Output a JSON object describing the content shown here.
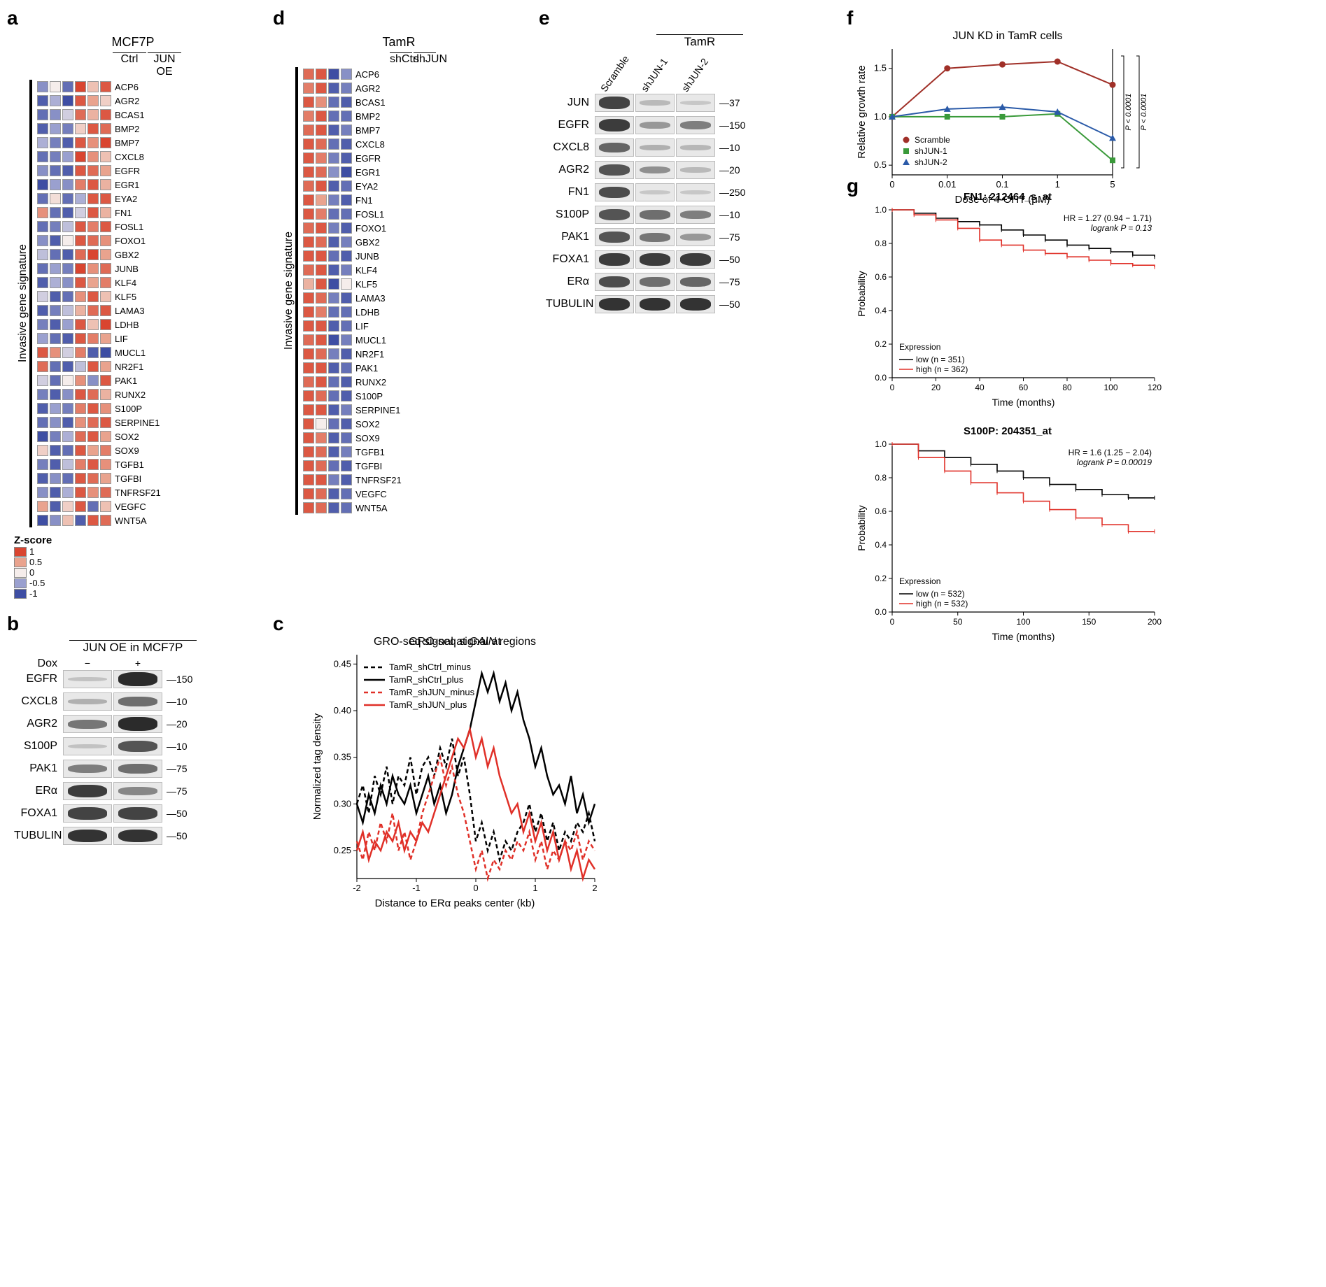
{
  "zscale": {
    "title": "Z-score",
    "stops": [
      {
        "v": "1",
        "c": "#d94530"
      },
      {
        "v": "0.5",
        "c": "#e9a38e"
      },
      {
        "v": "0",
        "c": "#f5edeb"
      },
      {
        "v": "-0.5",
        "c": "#9aa0cf"
      },
      {
        "v": "-1",
        "c": "#3e4ea3"
      }
    ]
  },
  "panel_a": {
    "title": "MCF7P",
    "header": [
      "Ctrl",
      "JUN OE"
    ],
    "sidelabel": "Invasive gene signature",
    "genes": [
      "ACP6",
      "AGR2",
      "BCAS1",
      "BMP2",
      "BMP7",
      "CXCL8",
      "EGFR",
      "EGR1",
      "EYA2",
      "FN1",
      "FOSL1",
      "FOXO1",
      "GBX2",
      "JUNB",
      "KLF4",
      "KLF5",
      "LAMA3",
      "LDHB",
      "LIF",
      "MUCL1",
      "NR2F1",
      "PAK1",
      "RUNX2",
      "S100P",
      "SERPINE1",
      "SOX2",
      "SOX9",
      "TGFB1",
      "TGFBI",
      "TNFRSF21",
      "VEGFC",
      "WNT5A"
    ],
    "matrix": [
      [
        -0.6,
        0.0,
        -0.8,
        1.0,
        0.3,
        0.9
      ],
      [
        -0.9,
        -0.4,
        -1.0,
        0.9,
        0.5,
        0.2
      ],
      [
        -0.8,
        -0.6,
        -0.2,
        0.8,
        0.4,
        0.9
      ],
      [
        -0.9,
        -0.5,
        -0.7,
        0.2,
        0.9,
        0.8
      ],
      [
        -0.4,
        -0.7,
        -0.9,
        0.9,
        0.6,
        1.0
      ],
      [
        -0.8,
        -0.7,
        -0.5,
        1.0,
        0.6,
        0.3
      ],
      [
        -0.6,
        -0.8,
        -0.9,
        0.9,
        0.8,
        0.5
      ],
      [
        -1.0,
        -0.5,
        -0.6,
        0.7,
        0.9,
        0.4
      ],
      [
        -0.8,
        0.1,
        -0.8,
        -0.4,
        0.9,
        0.9
      ],
      [
        0.6,
        -0.8,
        -0.9,
        -0.2,
        0.9,
        0.4
      ],
      [
        -0.8,
        -0.7,
        -0.3,
        0.9,
        0.7,
        0.9
      ],
      [
        -0.6,
        -0.9,
        0.0,
        0.9,
        0.8,
        0.6
      ],
      [
        -0.3,
        -0.8,
        -0.9,
        0.8,
        1.0,
        0.5
      ],
      [
        -0.8,
        -0.5,
        -0.7,
        1.0,
        0.6,
        0.8
      ],
      [
        -0.9,
        -0.4,
        -0.6,
        0.9,
        0.5,
        0.7
      ],
      [
        -0.2,
        -0.9,
        -0.8,
        0.6,
        0.9,
        0.3
      ],
      [
        -0.9,
        -0.7,
        -0.3,
        0.4,
        0.8,
        0.9
      ],
      [
        -0.7,
        -0.9,
        -0.5,
        0.9,
        0.3,
        1.0
      ],
      [
        -0.5,
        -0.8,
        -0.9,
        0.9,
        0.7,
        0.5
      ],
      [
        0.9,
        0.6,
        -0.2,
        0.7,
        -0.9,
        -1.0
      ],
      [
        0.8,
        -0.8,
        -0.9,
        -0.3,
        0.9,
        0.5
      ],
      [
        -0.2,
        -0.8,
        0.0,
        0.6,
        -0.6,
        0.9
      ],
      [
        -0.7,
        -0.9,
        -0.6,
        0.9,
        0.8,
        0.4
      ],
      [
        -0.9,
        -0.5,
        -0.7,
        0.7,
        0.9,
        0.6
      ],
      [
        -0.8,
        -0.6,
        -0.9,
        0.6,
        0.8,
        0.9
      ],
      [
        -1.0,
        -0.7,
        -0.4,
        0.8,
        0.9,
        0.5
      ],
      [
        0.2,
        -0.9,
        -0.8,
        0.9,
        0.5,
        0.7
      ],
      [
        -0.7,
        -0.9,
        -0.3,
        0.7,
        0.9,
        0.6
      ],
      [
        -0.9,
        -0.6,
        -0.8,
        0.9,
        0.8,
        0.5
      ],
      [
        -0.6,
        -0.9,
        -0.4,
        0.9,
        0.6,
        0.8
      ],
      [
        0.5,
        -0.9,
        0.2,
        0.9,
        -0.8,
        0.3
      ],
      [
        -1.0,
        -0.6,
        0.3,
        -0.9,
        0.9,
        0.8
      ]
    ]
  },
  "panel_d": {
    "title": "TamR",
    "header": [
      "shCtrl",
      "shJUN"
    ],
    "sidelabel": "Invasive gene signature",
    "genes": [
      "ACP6",
      "AGR2",
      "BCAS1",
      "BMP2",
      "BMP7",
      "CXCL8",
      "EGFR",
      "EGR1",
      "EYA2",
      "FN1",
      "FOSL1",
      "FOXO1",
      "GBX2",
      "JUNB",
      "KLF4",
      "KLF5",
      "LAMA3",
      "LDHB",
      "LIF",
      "MUCL1",
      "NR2F1",
      "PAK1",
      "RUNX2",
      "S100P",
      "SERPINE1",
      "SOX2",
      "SOX9",
      "TGFB1",
      "TGFBI",
      "TNFRSF21",
      "VEGFC",
      "WNT5A"
    ],
    "matrix": [
      [
        0.8,
        0.9,
        -1.0,
        -0.6
      ],
      [
        0.7,
        0.9,
        -0.9,
        -0.7
      ],
      [
        0.9,
        0.6,
        -0.8,
        -0.9
      ],
      [
        0.7,
        0.9,
        -0.8,
        -0.8
      ],
      [
        0.8,
        0.9,
        -0.9,
        -0.7
      ],
      [
        0.9,
        0.8,
        -0.8,
        -0.9
      ],
      [
        0.9,
        0.7,
        -0.7,
        -0.9
      ],
      [
        0.9,
        0.8,
        -0.6,
        -1.0
      ],
      [
        0.8,
        0.9,
        -0.9,
        -0.8
      ],
      [
        0.9,
        0.5,
        -0.7,
        -0.9
      ],
      [
        0.9,
        0.7,
        -0.8,
        -0.8
      ],
      [
        0.8,
        0.9,
        -0.7,
        -0.9
      ],
      [
        0.9,
        0.8,
        -0.9,
        -0.7
      ],
      [
        0.9,
        0.9,
        -0.8,
        -0.9
      ],
      [
        0.8,
        0.9,
        -0.9,
        -0.7
      ],
      [
        0.4,
        0.9,
        -1.0,
        0.0
      ],
      [
        0.9,
        0.8,
        -0.7,
        -0.9
      ],
      [
        0.9,
        0.7,
        -0.8,
        -0.8
      ],
      [
        0.9,
        0.9,
        -0.9,
        -0.8
      ],
      [
        0.8,
        0.9,
        -1.0,
        -0.7
      ],
      [
        0.9,
        0.8,
        -0.7,
        -0.9
      ],
      [
        0.9,
        0.9,
        -0.9,
        -0.8
      ],
      [
        0.8,
        0.9,
        -0.8,
        -0.9
      ],
      [
        0.9,
        0.8,
        -0.8,
        -0.9
      ],
      [
        0.9,
        0.9,
        -0.9,
        -0.7
      ],
      [
        0.9,
        0.0,
        -0.8,
        -0.9
      ],
      [
        0.9,
        0.7,
        -0.9,
        -0.8
      ],
      [
        0.9,
        0.8,
        -0.9,
        -0.7
      ],
      [
        0.9,
        0.8,
        -0.8,
        -0.9
      ],
      [
        0.9,
        0.9,
        -0.7,
        -0.9
      ],
      [
        0.9,
        0.8,
        -0.9,
        -0.8
      ],
      [
        0.9,
        0.8,
        -0.9,
        -0.8
      ]
    ]
  },
  "panel_b": {
    "title": "JUN OE in MCF7P",
    "colheaders": [
      "−",
      "+"
    ],
    "rowheader": "Dox",
    "lane_w": 70,
    "rows": [
      {
        "label": "EGFR",
        "mw": "150",
        "bands": [
          0.05,
          0.95
        ]
      },
      {
        "label": "CXCL8",
        "mw": "10",
        "bands": [
          0.15,
          0.55
        ]
      },
      {
        "label": "AGR2",
        "mw": "20",
        "bands": [
          0.5,
          0.95
        ]
      },
      {
        "label": "S100P",
        "mw": "10",
        "bands": [
          0.05,
          0.7
        ]
      },
      {
        "label": "PAK1",
        "mw": "75",
        "bands": [
          0.45,
          0.55
        ]
      },
      {
        "label": "ERα",
        "mw": "75",
        "bands": [
          0.85,
          0.4
        ]
      },
      {
        "label": "FOXA1",
        "mw": "50",
        "bands": [
          0.8,
          0.8
        ]
      },
      {
        "label": "TUBULIN",
        "mw": "50",
        "bands": [
          0.9,
          0.9
        ]
      }
    ]
  },
  "panel_e": {
    "title": "TamR",
    "colheaders": [
      "Scramble",
      "shJUN-1",
      "shJUN-2"
    ],
    "lane_w": 56,
    "rows": [
      {
        "label": "JUN",
        "mw": "37",
        "bands": [
          0.8,
          0.1,
          0.02
        ]
      },
      {
        "label": "EGFR",
        "mw": "150",
        "bands": [
          0.85,
          0.3,
          0.45
        ]
      },
      {
        "label": "CXCL8",
        "mw": "10",
        "bands": [
          0.6,
          0.15,
          0.12
        ]
      },
      {
        "label": "AGR2",
        "mw": "20",
        "bands": [
          0.7,
          0.35,
          0.1
        ]
      },
      {
        "label": "FN1",
        "mw": "250",
        "bands": [
          0.75,
          0.02,
          0.02
        ]
      },
      {
        "label": "S100P",
        "mw": "10",
        "bands": [
          0.7,
          0.55,
          0.45
        ]
      },
      {
        "label": "PAK1",
        "mw": "75",
        "bands": [
          0.7,
          0.5,
          0.3
        ]
      },
      {
        "label": "FOXA1",
        "mw": "50",
        "bands": [
          0.85,
          0.85,
          0.85
        ]
      },
      {
        "label": "ERα",
        "mw": "75",
        "bands": [
          0.75,
          0.55,
          0.6
        ]
      },
      {
        "label": "TUBULIN",
        "mw": "50",
        "bands": [
          0.9,
          0.9,
          0.9
        ]
      }
    ]
  },
  "panel_c": {
    "title": "GRO-seq signal at GAIN regions",
    "title_italic_word": "GAIN",
    "xlabel": "Distance to ERα peaks center (kb)",
    "ylabel": "Normalized tag density",
    "xlim": [
      -2,
      2
    ],
    "ylim": [
      0.22,
      0.46
    ],
    "xticks": [
      -2,
      -1,
      0,
      1,
      2
    ],
    "yticks": [
      0.25,
      0.3,
      0.35,
      0.4,
      0.45
    ],
    "ytick_labels": [
      "0.25",
      "0.30",
      "0.35",
      "0.40",
      "0.45"
    ],
    "series": [
      {
        "name": "TamR_shCtrl_minus",
        "color": "#000000",
        "dash": true,
        "y": [
          0.3,
          0.32,
          0.29,
          0.33,
          0.31,
          0.34,
          0.3,
          0.33,
          0.32,
          0.35,
          0.31,
          0.34,
          0.35,
          0.33,
          0.36,
          0.34,
          0.37,
          0.33,
          0.35,
          0.31,
          0.26,
          0.28,
          0.25,
          0.27,
          0.24,
          0.26,
          0.25,
          0.27,
          0.28,
          0.3,
          0.27,
          0.29,
          0.26,
          0.28,
          0.25,
          0.27,
          0.26,
          0.28,
          0.27,
          0.29,
          0.26
        ]
      },
      {
        "name": "TamR_shCtrl_plus",
        "color": "#000000",
        "dash": false,
        "y": [
          0.3,
          0.28,
          0.31,
          0.29,
          0.32,
          0.3,
          0.33,
          0.31,
          0.3,
          0.32,
          0.29,
          0.31,
          0.33,
          0.3,
          0.32,
          0.29,
          0.31,
          0.34,
          0.36,
          0.38,
          0.41,
          0.44,
          0.42,
          0.44,
          0.41,
          0.43,
          0.4,
          0.42,
          0.39,
          0.37,
          0.34,
          0.36,
          0.33,
          0.31,
          0.32,
          0.3,
          0.33,
          0.29,
          0.31,
          0.28,
          0.3
        ]
      },
      {
        "name": "TamR_shJUN_minus",
        "color": "#e03028",
        "dash": true,
        "y": [
          0.26,
          0.24,
          0.27,
          0.25,
          0.28,
          0.26,
          0.29,
          0.25,
          0.27,
          0.24,
          0.26,
          0.29,
          0.31,
          0.33,
          0.35,
          0.32,
          0.34,
          0.31,
          0.29,
          0.26,
          0.23,
          0.25,
          0.22,
          0.24,
          0.23,
          0.25,
          0.24,
          0.26,
          0.25,
          0.27,
          0.24,
          0.26,
          0.23,
          0.25,
          0.24,
          0.26,
          0.25,
          0.27,
          0.24,
          0.26,
          0.25
        ]
      },
      {
        "name": "TamR_shJUN_plus",
        "color": "#e03028",
        "dash": false,
        "y": [
          0.25,
          0.27,
          0.24,
          0.26,
          0.25,
          0.27,
          0.26,
          0.28,
          0.25,
          0.27,
          0.26,
          0.28,
          0.27,
          0.29,
          0.31,
          0.33,
          0.35,
          0.37,
          0.36,
          0.38,
          0.35,
          0.37,
          0.34,
          0.36,
          0.33,
          0.31,
          0.29,
          0.3,
          0.27,
          0.29,
          0.26,
          0.28,
          0.25,
          0.27,
          0.24,
          0.26,
          0.23,
          0.25,
          0.22,
          0.24,
          0.23
        ]
      }
    ]
  },
  "panel_f": {
    "title": "JUN KD in TamR cells",
    "xlabel": "Dose of 4-OHT (μM)",
    "ylabel": "Relative growth rate",
    "xcats": [
      "0",
      "0.01",
      "0.1",
      "1",
      "5"
    ],
    "ylim": [
      0.4,
      1.7
    ],
    "yticks": [
      0.5,
      1.0,
      1.5
    ],
    "series": [
      {
        "name": "Scramble",
        "color": "#a03028",
        "marker": "circle",
        "y": [
          1.0,
          1.5,
          1.54,
          1.57,
          1.33
        ]
      },
      {
        "name": "shJUN-1",
        "color": "#3a9a3a",
        "marker": "square",
        "y": [
          1.0,
          1.0,
          1.0,
          1.03,
          0.55
        ]
      },
      {
        "name": "shJUN-2",
        "color": "#2a5aa8",
        "marker": "triangle",
        "y": [
          1.0,
          1.08,
          1.1,
          1.05,
          0.78
        ]
      }
    ],
    "pvals": [
      "P < 0.0001",
      "P < 0.0001"
    ]
  },
  "panel_g": [
    {
      "title": "FN1: 212464_s_at",
      "hr": "HR = 1.27 (0.94 − 1.71)",
      "logrank": "logrank P = 0.13",
      "xlabel": "Time (months)",
      "ylabel": "Probability",
      "xlim": [
        0,
        120
      ],
      "xticks": [
        0,
        20,
        40,
        60,
        80,
        100,
        120
      ],
      "ylim": [
        0,
        1
      ],
      "yticks": [
        0.0,
        0.2,
        0.4,
        0.6,
        0.8,
        1.0
      ],
      "legend": {
        "low": "low (n = 351)",
        "high": "high (n = 362)"
      },
      "low": {
        "color": "#000000",
        "pts": [
          [
            0,
            1.0
          ],
          [
            10,
            0.98
          ],
          [
            20,
            0.95
          ],
          [
            30,
            0.93
          ],
          [
            40,
            0.91
          ],
          [
            50,
            0.88
          ],
          [
            60,
            0.85
          ],
          [
            70,
            0.82
          ],
          [
            80,
            0.79
          ],
          [
            90,
            0.77
          ],
          [
            100,
            0.75
          ],
          [
            110,
            0.73
          ],
          [
            120,
            0.72
          ]
        ]
      },
      "high": {
        "color": "#e03028",
        "pts": [
          [
            0,
            1.0
          ],
          [
            10,
            0.97
          ],
          [
            20,
            0.94
          ],
          [
            30,
            0.89
          ],
          [
            40,
            0.82
          ],
          [
            50,
            0.79
          ],
          [
            60,
            0.76
          ],
          [
            70,
            0.74
          ],
          [
            80,
            0.72
          ],
          [
            90,
            0.7
          ],
          [
            100,
            0.68
          ],
          [
            110,
            0.67
          ],
          [
            120,
            0.66
          ]
        ]
      }
    },
    {
      "title": "S100P: 204351_at",
      "hr": "HR = 1.6 (1.25 − 2.04)",
      "logrank": "logrank P = 0.00019",
      "xlabel": "Time (months)",
      "ylabel": "Probability",
      "xlim": [
        0,
        200
      ],
      "xticks": [
        0,
        50,
        100,
        150,
        200
      ],
      "ylim": [
        0,
        1
      ],
      "yticks": [
        0.0,
        0.2,
        0.4,
        0.6,
        0.8,
        1.0
      ],
      "legend": {
        "low": "low (n = 532)",
        "high": "high (n = 532)"
      },
      "low": {
        "color": "#000000",
        "pts": [
          [
            0,
            1.0
          ],
          [
            20,
            0.96
          ],
          [
            40,
            0.92
          ],
          [
            60,
            0.88
          ],
          [
            80,
            0.84
          ],
          [
            100,
            0.8
          ],
          [
            120,
            0.76
          ],
          [
            140,
            0.73
          ],
          [
            160,
            0.7
          ],
          [
            180,
            0.68
          ],
          [
            200,
            0.68
          ]
        ]
      },
      "high": {
        "color": "#e03028",
        "pts": [
          [
            0,
            1.0
          ],
          [
            20,
            0.92
          ],
          [
            40,
            0.84
          ],
          [
            60,
            0.77
          ],
          [
            80,
            0.71
          ],
          [
            100,
            0.66
          ],
          [
            120,
            0.61
          ],
          [
            140,
            0.56
          ],
          [
            160,
            0.52
          ],
          [
            180,
            0.48
          ],
          [
            200,
            0.48
          ]
        ]
      }
    }
  ],
  "colors": {
    "red": "#d94530",
    "blue": "#3e4ea3"
  }
}
